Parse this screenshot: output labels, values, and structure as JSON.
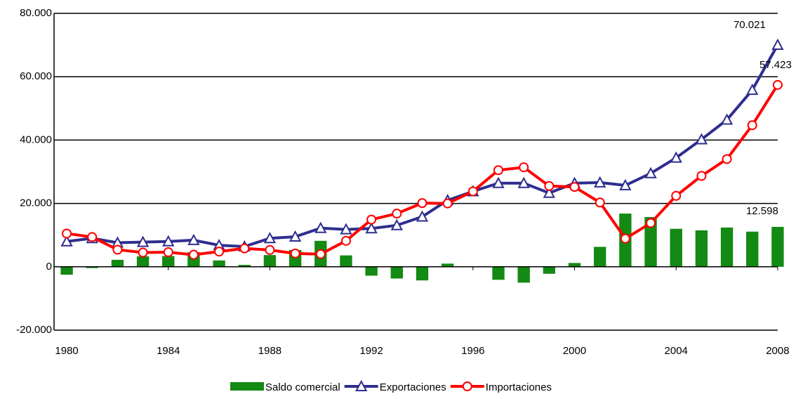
{
  "chart_data": {
    "type": "combo",
    "x": [
      1980,
      1981,
      1982,
      1983,
      1984,
      1985,
      1986,
      1987,
      1988,
      1989,
      1990,
      1991,
      1992,
      1993,
      1994,
      1995,
      1996,
      1997,
      1998,
      1999,
      2000,
      2001,
      2002,
      2003,
      2004,
      2005,
      2006,
      2007,
      2008
    ],
    "xlim": [
      1979.5,
      2008.5
    ],
    "xticks": [
      1980,
      1984,
      1988,
      1992,
      1996,
      2000,
      2004,
      2008
    ],
    "ylim": [
      -20000,
      80000
    ],
    "yticks": [
      {
        "value": -20000,
        "label": "-20.000"
      },
      0,
      {
        "value": 20000,
        "label": "20.000"
      },
      {
        "value": 40000,
        "label": "40.000"
      },
      {
        "value": 60000,
        "label": "60.000"
      },
      {
        "value": 80000,
        "label": "80.000"
      }
    ],
    "grid": true,
    "legend": "bottom",
    "series": [
      {
        "name": "Saldo comercial",
        "type": "bar",
        "color": "#138a13",
        "values": [
          -2500,
          -400,
          2200,
          3300,
          3400,
          4600,
          2000,
          600,
          3700,
          5300,
          8200,
          3600,
          -2800,
          -3700,
          -4300,
          1000,
          100,
          -4100,
          -5000,
          -2200,
          1200,
          6300,
          16800,
          15700,
          12000,
          11500,
          12400,
          11100,
          12598
        ],
        "value_labels": [
          null,
          null,
          null,
          null,
          null,
          null,
          null,
          null,
          null,
          null,
          null,
          null,
          null,
          null,
          null,
          null,
          null,
          null,
          null,
          null,
          null,
          null,
          null,
          null,
          null,
          null,
          null,
          null,
          "12.598"
        ]
      },
      {
        "name": "Exportaciones",
        "type": "line",
        "marker": "triangle",
        "color": "#2e2e8f",
        "values": [
          8000,
          9000,
          7600,
          7800,
          8000,
          8400,
          6800,
          6400,
          9000,
          9500,
          12200,
          11800,
          12100,
          13100,
          15800,
          21000,
          23800,
          26400,
          26400,
          23300,
          26400,
          26600,
          25700,
          29500,
          34400,
          40200,
          46400,
          55800,
          70021
        ],
        "value_labels": [
          null,
          null,
          null,
          null,
          null,
          null,
          null,
          null,
          null,
          null,
          null,
          null,
          null,
          null,
          null,
          null,
          null,
          null,
          null,
          null,
          null,
          null,
          null,
          null,
          null,
          null,
          null,
          null,
          "70.021"
        ]
      },
      {
        "name": "Importaciones",
        "type": "line",
        "marker": "circle",
        "color": "#ff0000",
        "values": [
          10500,
          9400,
          5400,
          4500,
          4600,
          3800,
          4800,
          5800,
          5300,
          4200,
          4000,
          8200,
          14900,
          16800,
          20100,
          20000,
          23800,
          30500,
          31400,
          25500,
          25200,
          20300,
          8900,
          13800,
          22400,
          28700,
          34000,
          44700,
          57423
        ],
        "value_labels": [
          null,
          null,
          null,
          null,
          null,
          null,
          null,
          null,
          null,
          null,
          null,
          null,
          null,
          null,
          null,
          null,
          null,
          null,
          null,
          null,
          null,
          null,
          null,
          null,
          null,
          null,
          null,
          null,
          "57.423"
        ]
      }
    ]
  }
}
